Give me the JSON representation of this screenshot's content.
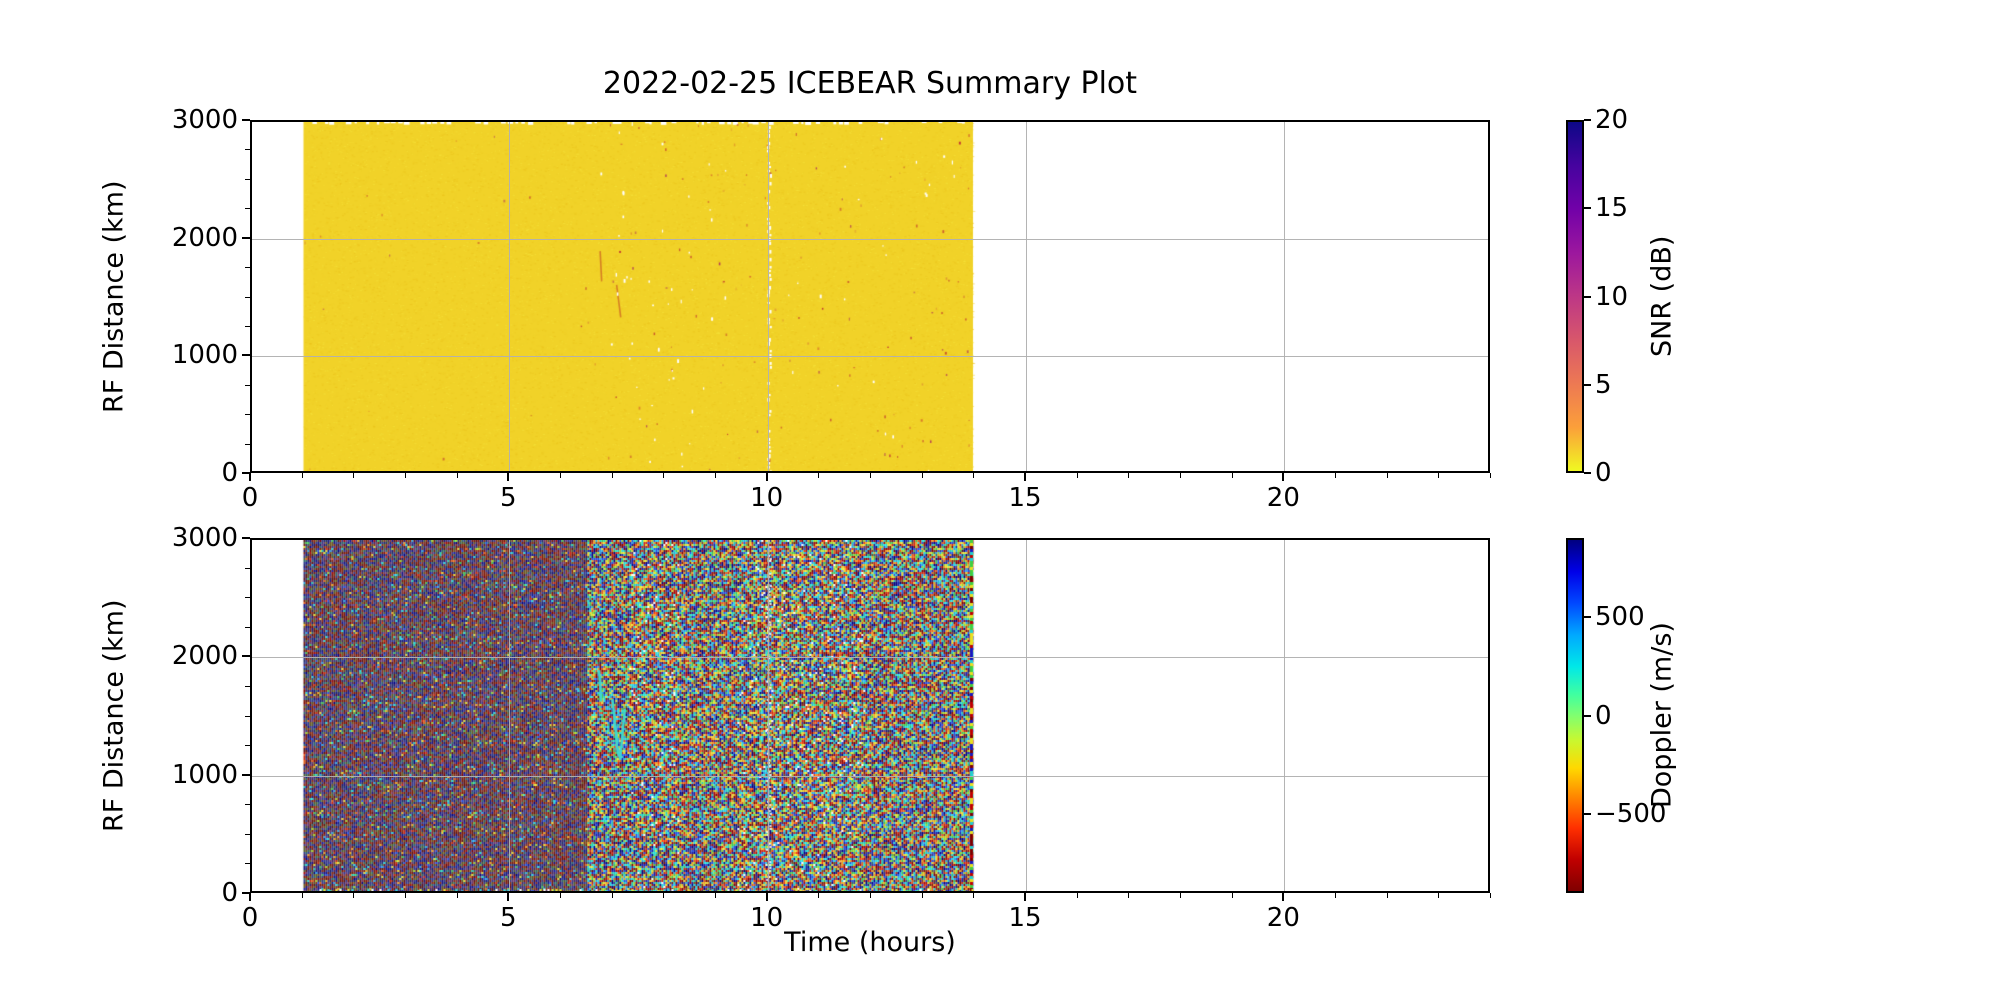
{
  "figure": {
    "title": "2022-02-25 ICEBEAR Summary Plot",
    "background_color": "#ffffff",
    "grid_color": "#b0b0b0"
  },
  "chart_data": [
    {
      "type": "heatmap",
      "panel": "snr",
      "title": "2022-02-25 ICEBEAR Summary Plot",
      "xlabel": "",
      "ylabel": "RF Distance (km)",
      "xlim": [
        0,
        24
      ],
      "ylim": [
        0,
        3000
      ],
      "x_ticks": [
        0,
        5,
        10,
        15,
        20
      ],
      "x_minor_tick_step_hours": 1,
      "y_ticks": [
        0,
        1000,
        2000,
        3000
      ],
      "y_minor_tick_step_km": 250,
      "grid": true,
      "data_extent": {
        "time_hours": [
          1,
          14
        ],
        "rf_distance_km": [
          0,
          3000
        ]
      },
      "field_description": "near-uniform SNR of about 0 dB (yellow) filling 1-14 h over 0-3000 km; sparse faint orange/red specks mostly 6-13 h; faint orange echo streak near 6.7-7.3 h at 1300-1900 km; white data-gap column near 10 h",
      "base_field_color": "#f1d228",
      "colorbar": {
        "label": "SNR (dB)",
        "ticks": [
          20,
          15,
          10,
          5,
          0
        ],
        "range": [
          0,
          20
        ],
        "colormap": "plasma_r"
      }
    },
    {
      "type": "heatmap",
      "panel": "doppler",
      "xlabel": "Time (hours)",
      "ylabel": "RF Distance (km)",
      "xlim": [
        0,
        24
      ],
      "ylim": [
        0,
        3000
      ],
      "x_ticks": [
        0,
        5,
        10,
        15,
        20
      ],
      "x_minor_tick_step_hours": 1,
      "y_ticks": [
        0,
        1000,
        2000,
        3000
      ],
      "y_minor_tick_step_km": 250,
      "grid": true,
      "data_extent": {
        "time_hours": [
          1,
          14
        ],
        "rf_distance_km": [
          0,
          3000
        ]
      },
      "field_description": "random multicolour Doppler noise from 1-14 h; finer muted red/blue/purple noise 1-6.5 h; coarser vivid full-palette noise 6.5-14 h; pale data-gap column near 10 h; vivid saturated column at right data edge near 14 h; coherent cyan echo streak near 6.7-7.3 h at 1100-1900 km",
      "echo_feature_color": "#3cd6d0",
      "colorbar": {
        "label": "Doppler (m/s)",
        "ticks": [
          500,
          0,
          -500
        ],
        "range": [
          -900,
          900
        ],
        "colormap": "jet (blue = positive, red = negative)"
      }
    }
  ]
}
